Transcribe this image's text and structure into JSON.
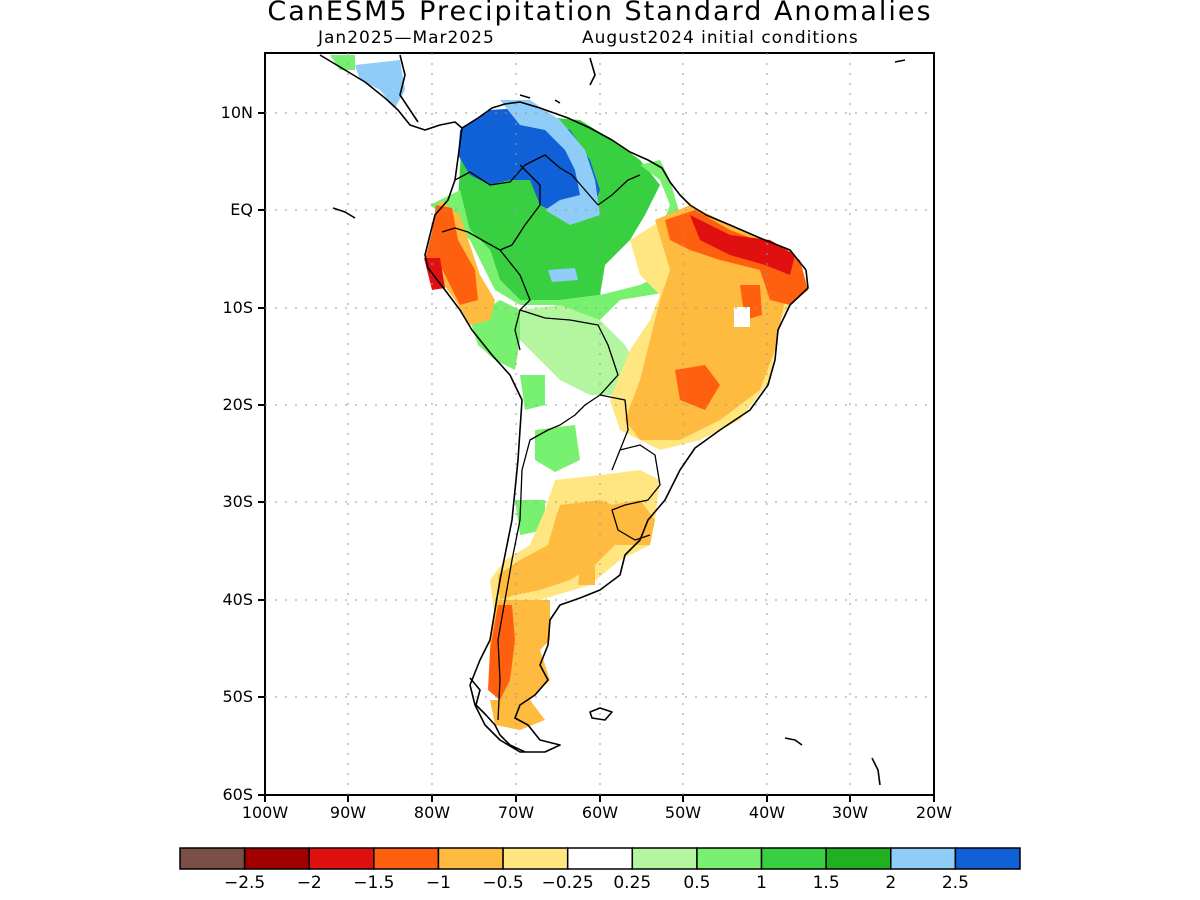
{
  "title": "CanESM5 Precipitation Standard Anomalies",
  "period": "Jan2025—Mar2025",
  "init": "August2024 initial conditions",
  "lat_labels": [
    "10N",
    "EQ",
    "10S",
    "20S",
    "30S",
    "40S",
    "50S",
    "60S"
  ],
  "lon_labels": [
    "100W",
    "90W",
    "80W",
    "70W",
    "60W",
    "50W",
    "40W",
    "30W",
    "20W"
  ],
  "colorbar": {
    "colors": [
      "#7a5046",
      "#a00000",
      "#e01010",
      "#ff6010",
      "#ffbb40",
      "#ffe680",
      "#ffffff",
      "#b4f5a0",
      "#78f070",
      "#38d040",
      "#20b020",
      "#90ccf8",
      "#1060d8"
    ],
    "labels": [
      "−2.5",
      "−2",
      "−1.5",
      "−1",
      "−0.5",
      "−0.25",
      "0.25",
      "0.5",
      "1",
      "1.5",
      "2",
      "2.5"
    ]
  }
}
